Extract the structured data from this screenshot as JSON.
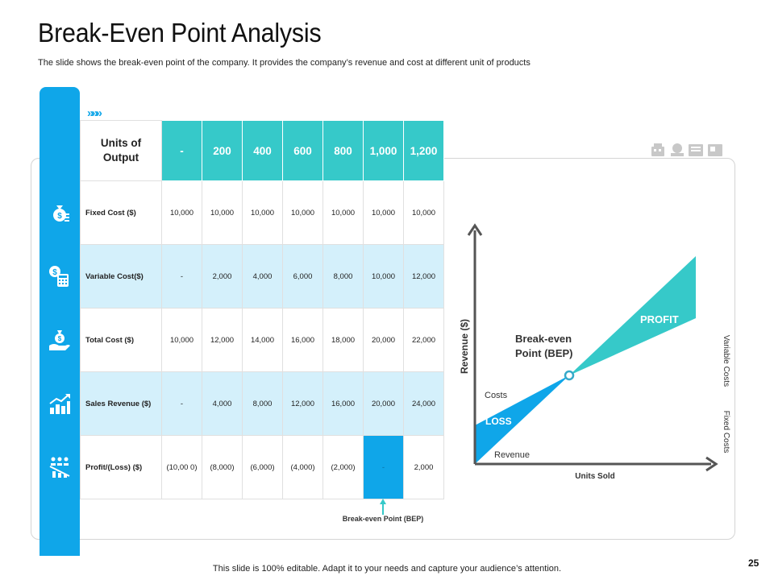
{
  "title": "Break-Even Point Analysis",
  "subtitle": "The slide shows the break-even  point of the company. It provides  the company’s revenue  and cost at different unit of products",
  "colors": {
    "accent_blue": "#0fa6e9",
    "teal": "#36c9c9",
    "shaded_row": "#d4f0fb",
    "axis": "#555555"
  },
  "table": {
    "header_label": "Units of Output",
    "columns": [
      "-",
      "200",
      "400",
      "600",
      "800",
      "1,000",
      "1,200"
    ],
    "rows": [
      {
        "label": "Fixed Cost ($)",
        "icon": "money-bag-icon",
        "values": [
          "10,000",
          "10,000",
          "10,000",
          "10,000",
          "10,000",
          "10,000",
          "10,000"
        ]
      },
      {
        "label": "Variable Cost($)",
        "icon": "calculator-dollar-icon",
        "values": [
          "-",
          "2,000",
          "4,000",
          "6,000",
          "8,000",
          "10,000",
          "12,000"
        ]
      },
      {
        "label": "Total Cost ($)",
        "icon": "hand-money-bag-icon",
        "values": [
          "10,000",
          "12,000",
          "14,000",
          "16,000",
          "18,000",
          "20,000",
          "22,000"
        ]
      },
      {
        "label": "Sales Revenue ($)",
        "icon": "growth-chart-icon",
        "values": [
          "-",
          "4,000",
          "8,000",
          "12,000",
          "16,000",
          "20,000",
          "24,000"
        ]
      },
      {
        "label": "Profit/(Loss) ($)",
        "icon": "team-chart-icon",
        "values": [
          "(10,00 0)",
          "(8,000)",
          "(6,000)",
          "(4,000)",
          "(2,000)",
          "-",
          "2,000"
        ]
      }
    ],
    "bep_label": "Break-even Point (BEP)"
  },
  "chart": {
    "ylabel": "Revenue ($)",
    "xlabel": "Units Sold",
    "bep_label_line1": "Break-even",
    "bep_label_line2": "Point (BEP)",
    "profit_label": "PROFIT",
    "loss_label": "LOSS",
    "costs_label": "Costs",
    "revenue_label": "Revenue",
    "variable_costs_label": "Variable Costs",
    "fixed_costs_label": "Fixed Costs"
  },
  "footer": "This slide is 100% editable. Adapt it to your needs and capture your audience’s attention.",
  "page_number": "25"
}
